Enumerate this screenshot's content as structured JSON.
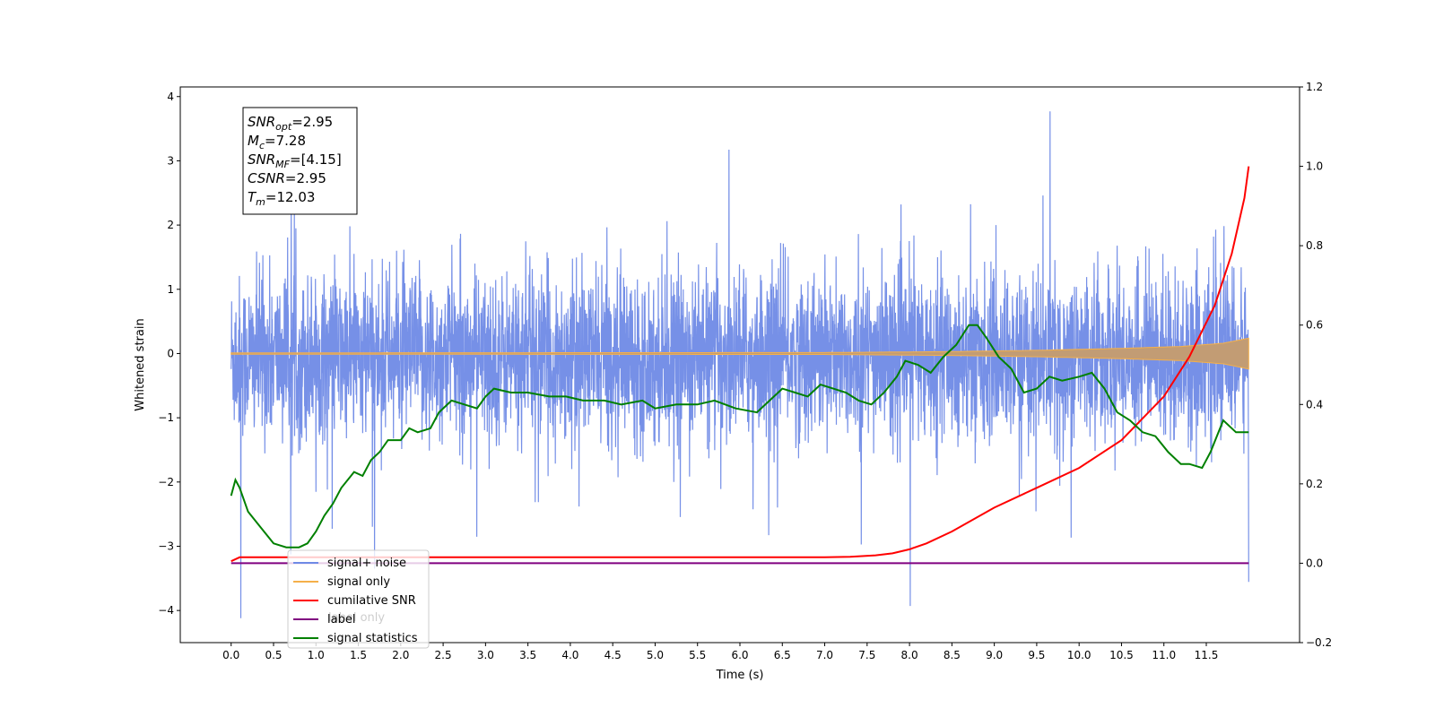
{
  "chart_data": {
    "type": "line",
    "xlabel": "Time (s)",
    "ylabel": "Whitened strain",
    "xlim": [
      -0.6,
      12.6
    ],
    "ylim": [
      -4.5,
      4.15
    ],
    "y2lim": [
      -0.2,
      1.2
    ],
    "x_ticks": [
      0.0,
      0.5,
      1.0,
      1.5,
      2.0,
      2.5,
      3.0,
      3.5,
      4.0,
      4.5,
      5.0,
      5.5,
      6.0,
      6.5,
      7.0,
      7.5,
      8.0,
      8.5,
      9.0,
      9.5,
      10.0,
      10.5,
      11.0,
      11.5
    ],
    "x_tick_labels": [
      "0.0",
      "0.5",
      "1.0",
      "1.5",
      "2.0",
      "2.5",
      "3.0",
      "3.5",
      "4.0",
      "4.5",
      "5.0",
      "5.5",
      "6.0",
      "6.5",
      "7.0",
      "7.5",
      "8.0",
      "8.5",
      "9.0",
      "9.5",
      "10.0",
      "10.5",
      "11.0",
      "11.5"
    ],
    "y_ticks": [
      -4,
      -3,
      -2,
      -1,
      0,
      1,
      2,
      3,
      4
    ],
    "y_tick_labels": [
      "−4",
      "−3",
      "−2",
      "−1",
      "0",
      "1",
      "2",
      "3",
      "4"
    ],
    "y2_ticks": [
      -0.2,
      0.0,
      0.2,
      0.4,
      0.6,
      0.8,
      1.0,
      1.2
    ],
    "y2_tick_labels": [
      "−0.2",
      "0.0",
      "0.2",
      "0.4",
      "0.6",
      "0.8",
      "1.0",
      "1.2"
    ],
    "grid": false,
    "legend_position": "lower-left",
    "colors": {
      "signal_noise": "#6f8ae6",
      "signal_only": "#f5b04a",
      "signal_only_band": "#c29c74",
      "cumulative_snr": "#ff0000",
      "label": "#800080",
      "signal_statistics": "#008000"
    },
    "info_box": [
      {
        "base": "SNR",
        "sub": "opt",
        "value": "=2.95"
      },
      {
        "base": "M",
        "sub": "c",
        "value": "=7.28"
      },
      {
        "base": "SNR",
        "sub": "MF",
        "value": "=[4.15]"
      },
      {
        "base": "CSNR",
        "sub": "",
        "value": "=2.95"
      },
      {
        "base": "T",
        "sub": "m",
        "value": "=12.03"
      }
    ],
    "legend": [
      {
        "label": "signal+ noise",
        "color": "#6f8ae6"
      },
      {
        "label": "signal only",
        "color": "#f5b04a"
      },
      {
        "label": "cumilative SNR",
        "color": "#ff0000"
      },
      {
        "label": "label",
        "color": "#800080"
      },
      {
        "label": "signal statistics",
        "color": "#008000"
      }
    ],
    "legend_hidden_entry": {
      "label": "label only",
      "color": "#b0b0b0"
    },
    "series": [
      {
        "name": "signal+ noise",
        "axis": "left",
        "description_values": {
          "x_range": [
            0.0,
            12.0
          ],
          "typical_band": [
            -1.75,
            1.65
          ],
          "peak_max": 3.77,
          "peak_min": -4.12
        }
      },
      {
        "name": "signal only",
        "axis": "left",
        "envelope": {
          "x": [
            0.0,
            7.0,
            8.5,
            9.5,
            10.5,
            11.2,
            11.7,
            12.0
          ],
          "amp": [
            0.01,
            0.015,
            0.03,
            0.05,
            0.08,
            0.11,
            0.16,
            0.24
          ]
        }
      },
      {
        "name": "cumilative SNR",
        "axis": "right",
        "x": [
          0.0,
          0.1,
          7.0,
          7.3,
          7.6,
          7.8,
          8.0,
          8.2,
          8.5,
          9.0,
          9.5,
          10.0,
          10.5,
          11.0,
          11.3,
          11.6,
          11.8,
          11.95,
          12.0
        ],
        "y": [
          0.005,
          0.015,
          0.015,
          0.016,
          0.02,
          0.025,
          0.035,
          0.05,
          0.08,
          0.14,
          0.19,
          0.24,
          0.31,
          0.42,
          0.52,
          0.65,
          0.78,
          0.92,
          1.0
        ]
      },
      {
        "name": "label",
        "axis": "right",
        "x": [
          0.0,
          12.0
        ],
        "y": [
          0.0,
          0.0
        ]
      },
      {
        "name": "signal statistics",
        "axis": "right",
        "x": [
          0.0,
          0.05,
          0.1,
          0.2,
          0.35,
          0.5,
          0.65,
          0.8,
          0.9,
          1.0,
          1.1,
          1.2,
          1.3,
          1.45,
          1.55,
          1.65,
          1.75,
          1.85,
          2.0,
          2.1,
          2.2,
          2.35,
          2.45,
          2.6,
          2.75,
          2.9,
          3.0,
          3.1,
          3.3,
          3.5,
          3.75,
          3.95,
          4.15,
          4.4,
          4.6,
          4.85,
          5.0,
          5.25,
          5.5,
          5.7,
          5.95,
          6.2,
          6.35,
          6.5,
          6.65,
          6.8,
          6.95,
          7.1,
          7.25,
          7.4,
          7.55,
          7.7,
          7.85,
          7.95,
          8.1,
          8.25,
          8.4,
          8.55,
          8.7,
          8.8,
          8.9,
          9.05,
          9.2,
          9.35,
          9.5,
          9.65,
          9.8,
          10.0,
          10.15,
          10.3,
          10.45,
          10.6,
          10.75,
          10.9,
          11.05,
          11.2,
          11.3,
          11.45,
          11.55,
          11.7,
          11.85,
          12.0
        ],
        "y": [
          0.17,
          0.21,
          0.19,
          0.13,
          0.09,
          0.05,
          0.04,
          0.04,
          0.05,
          0.08,
          0.12,
          0.15,
          0.19,
          0.23,
          0.22,
          0.26,
          0.28,
          0.31,
          0.31,
          0.34,
          0.33,
          0.34,
          0.38,
          0.41,
          0.4,
          0.39,
          0.42,
          0.44,
          0.43,
          0.43,
          0.42,
          0.42,
          0.41,
          0.41,
          0.4,
          0.41,
          0.39,
          0.4,
          0.4,
          0.41,
          0.39,
          0.38,
          0.41,
          0.44,
          0.43,
          0.42,
          0.45,
          0.44,
          0.43,
          0.41,
          0.4,
          0.43,
          0.47,
          0.51,
          0.5,
          0.48,
          0.52,
          0.55,
          0.6,
          0.6,
          0.57,
          0.52,
          0.49,
          0.43,
          0.44,
          0.47,
          0.46,
          0.47,
          0.48,
          0.44,
          0.38,
          0.36,
          0.33,
          0.32,
          0.28,
          0.25,
          0.25,
          0.24,
          0.28,
          0.36,
          0.33,
          0.33
        ]
      }
    ]
  }
}
